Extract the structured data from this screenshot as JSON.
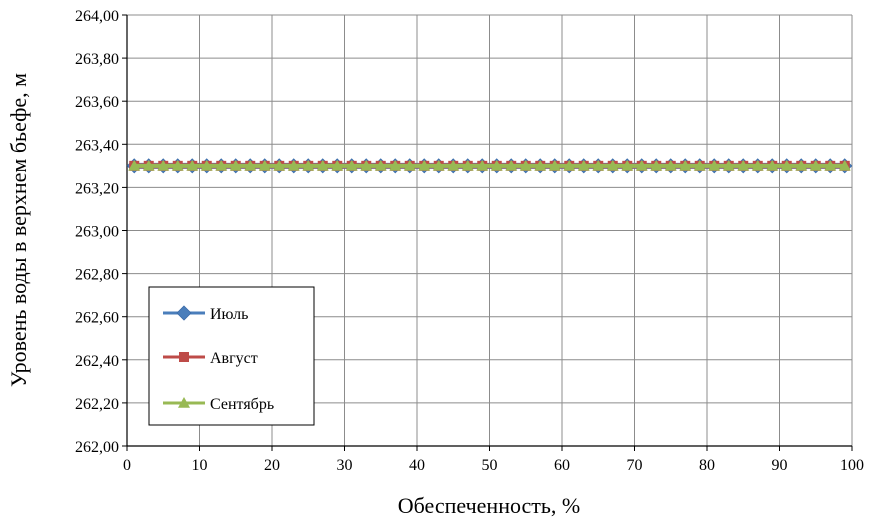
{
  "chart_data": {
    "type": "line",
    "xlabel": "Обеспеченность, %",
    "ylabel": "Уровень воды в верхнем бьефе, м",
    "xlim": [
      0,
      100
    ],
    "ylim": [
      262.0,
      264.0
    ],
    "x_ticks": [
      "0",
      "10",
      "20",
      "30",
      "40",
      "50",
      "60",
      "70",
      "80",
      "90",
      "100"
    ],
    "y_ticks": [
      "262,00",
      "262,20",
      "262,40",
      "262,60",
      "262,80",
      "263,00",
      "263,20",
      "263,40",
      "263,60",
      "263,80",
      "264,00"
    ],
    "grid": true,
    "legend_position": "lower-left",
    "x_range": [
      1,
      99
    ],
    "x_step": 2,
    "series": [
      {
        "name": "Июль",
        "value": 263.3,
        "color": "#4a7ebb",
        "marker": "diamond-icon"
      },
      {
        "name": "Август",
        "value": 263.3,
        "color": "#be4b48",
        "marker": "square-icon"
      },
      {
        "name": "Сентябрь",
        "value": 263.3,
        "color": "#98b954",
        "marker": "triangle-icon"
      }
    ]
  }
}
